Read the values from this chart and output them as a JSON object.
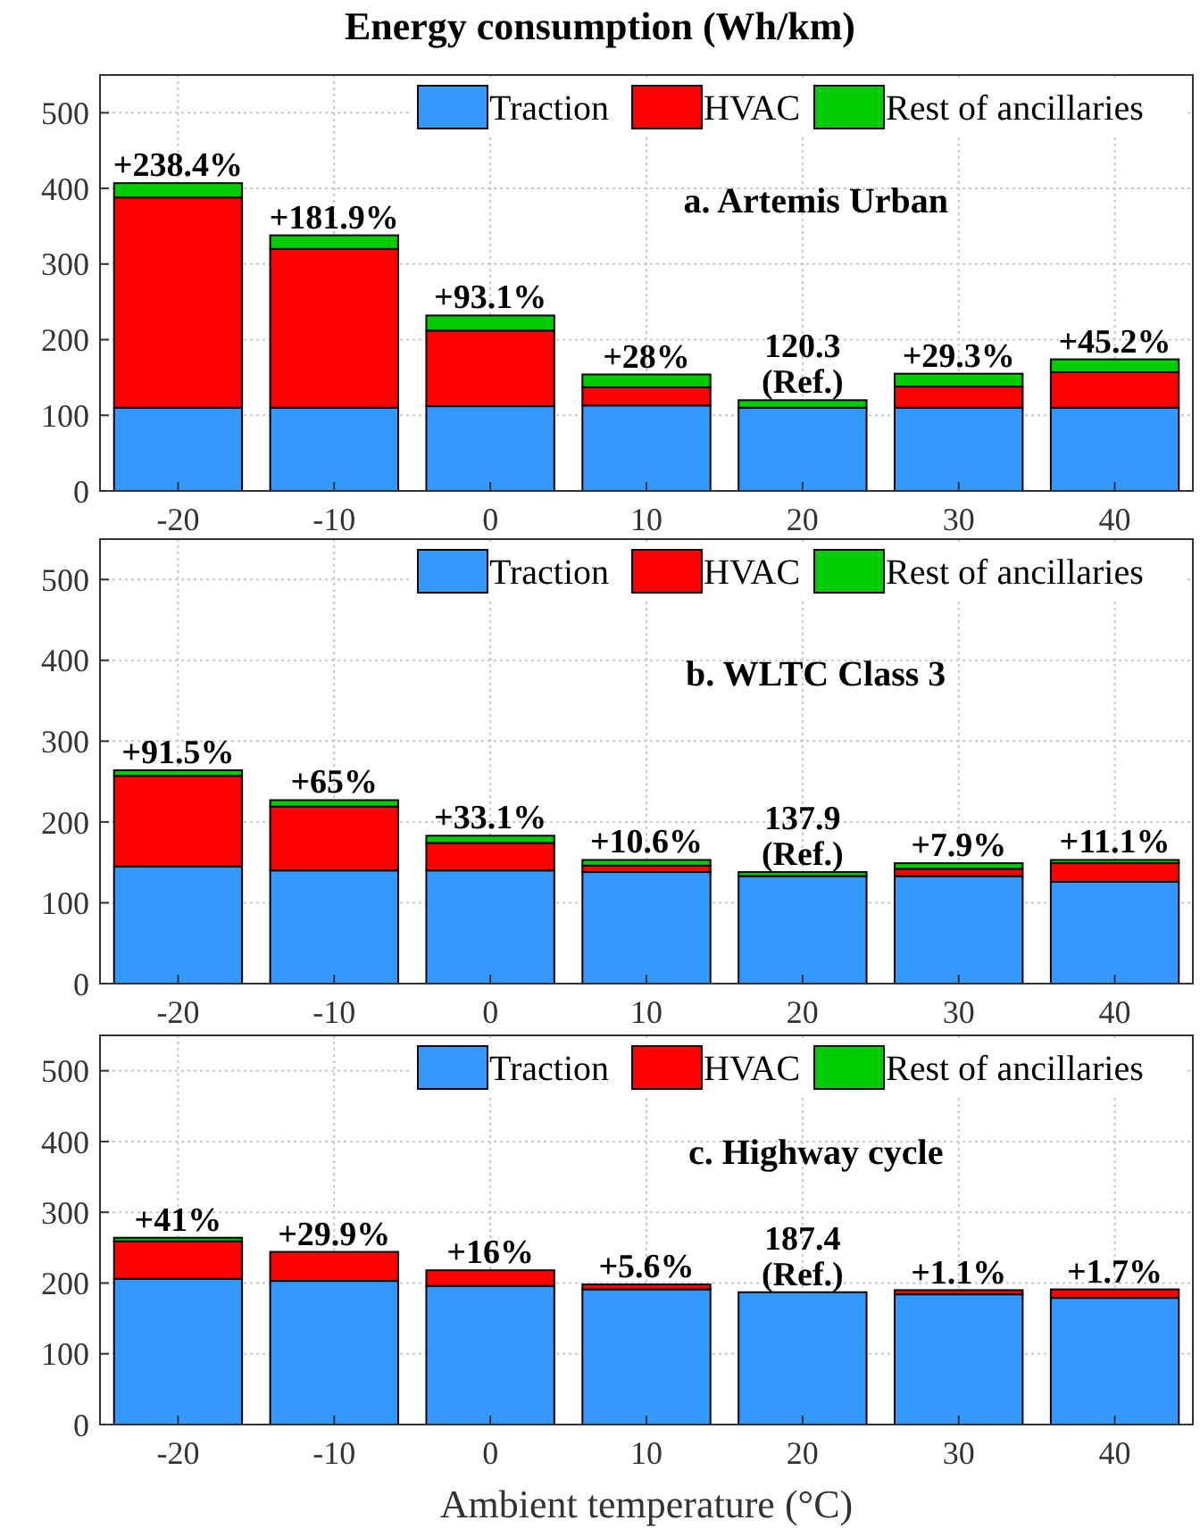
{
  "chart_data": [
    {
      "type": "bar",
      "title": "Energy consumption (Wh/km)",
      "stacked": true,
      "categories": [
        "-20",
        "-10",
        "0",
        "10",
        "20",
        "30",
        "40"
      ],
      "ylim": [
        0,
        550
      ],
      "yticks": [
        0,
        100,
        200,
        300,
        400,
        500
      ],
      "grid": true,
      "legend": "top right",
      "series": [
        {
          "name": "Traction",
          "color": "#3399ff",
          "values": [
            110,
            110,
            112,
            113,
            110,
            110,
            110
          ]
        },
        {
          "name": "HVAC",
          "color": "#ff0000",
          "values": [
            278,
            210,
            100,
            24,
            0,
            28,
            47
          ]
        },
        {
          "name": "Rest of ancillaries",
          "color": "#00cc00",
          "values": [
            19,
            18,
            20,
            17,
            10,
            17,
            17
          ]
        }
      ],
      "annotations": [
        "a. Artemis Urban",
        {
          "text": "+238.4%",
          "x": "-20",
          "y": 407
        },
        {
          "text": "+181.9%",
          "x": "-10",
          "y": 338
        },
        {
          "text": "+93.1%",
          "x": "0",
          "y": 232
        },
        {
          "text": "+28%",
          "x": "10",
          "y": 154
        },
        {
          "text": "120.3\n(Ref.)",
          "x": "20",
          "y": 120
        },
        {
          "text": "+29.3%",
          "x": "30",
          "y": 155
        },
        {
          "text": "+45.2%",
          "x": "40",
          "y": 174
        }
      ]
    },
    {
      "type": "bar",
      "stacked": true,
      "categories": [
        "-20",
        "-10",
        "0",
        "10",
        "20",
        "30",
        "40"
      ],
      "ylim": [
        0,
        550
      ],
      "yticks": [
        0,
        100,
        200,
        300,
        400,
        500
      ],
      "grid": true,
      "legend": "top right",
      "series": [
        {
          "name": "Traction",
          "color": "#3399ff",
          "values": [
            145,
            140,
            140,
            138,
            133,
            133,
            126
          ]
        },
        {
          "name": "HVAC",
          "color": "#ff0000",
          "values": [
            112,
            79,
            34,
            8,
            0,
            9,
            23
          ]
        },
        {
          "name": "Rest of ancillaries",
          "color": "#00cc00",
          "values": [
            7,
            8,
            9,
            7,
            5,
            7,
            4
          ]
        }
      ],
      "annotations": [
        "b. WLTC Class 3",
        {
          "text": "+91.5%",
          "x": "-20",
          "y": 264
        },
        {
          "text": "+65%",
          "x": "-10",
          "y": 227
        },
        {
          "text": "+33.1%",
          "x": "0",
          "y": 183
        },
        {
          "text": "+10.6%",
          "x": "10",
          "y": 153
        },
        {
          "text": "137.9\n(Ref.)",
          "x": "20",
          "y": 138
        },
        {
          "text": "+7.9%",
          "x": "30",
          "y": 149
        },
        {
          "text": "+11.1%",
          "x": "40",
          "y": 153
        }
      ]
    },
    {
      "type": "bar",
      "stacked": true,
      "xlabel": "Ambient temperature (°C)",
      "categories": [
        "-20",
        "-10",
        "0",
        "10",
        "20",
        "30",
        "40"
      ],
      "ylim": [
        0,
        550
      ],
      "yticks": [
        0,
        100,
        200,
        300,
        400,
        500
      ],
      "grid": true,
      "legend": "top right",
      "series": [
        {
          "name": "Traction",
          "color": "#3399ff",
          "values": [
            206,
            203,
            196,
            191,
            187,
            184,
            179
          ]
        },
        {
          "name": "HVAC",
          "color": "#ff0000",
          "values": [
            53,
            41,
            22,
            7,
            0,
            6,
            12
          ]
        },
        {
          "name": "Rest of ancillaries",
          "color": "#00cc00",
          "values": [
            5,
            0,
            0,
            0,
            0,
            0,
            0
          ]
        }
      ],
      "annotations": [
        "c. Highway cycle",
        {
          "text": "+41%",
          "x": "-20",
          "y": 264
        },
        {
          "text": "+29.9%",
          "x": "-10",
          "y": 244
        },
        {
          "text": "+16%",
          "x": "0",
          "y": 218
        },
        {
          "text": "+5.6%",
          "x": "10",
          "y": 198
        },
        {
          "text": "187.4\n(Ref.)",
          "x": "20",
          "y": 187
        },
        {
          "text": "+1.1%",
          "x": "30",
          "y": 189
        },
        {
          "text": "+1.7%",
          "x": "40",
          "y": 191
        }
      ]
    }
  ]
}
